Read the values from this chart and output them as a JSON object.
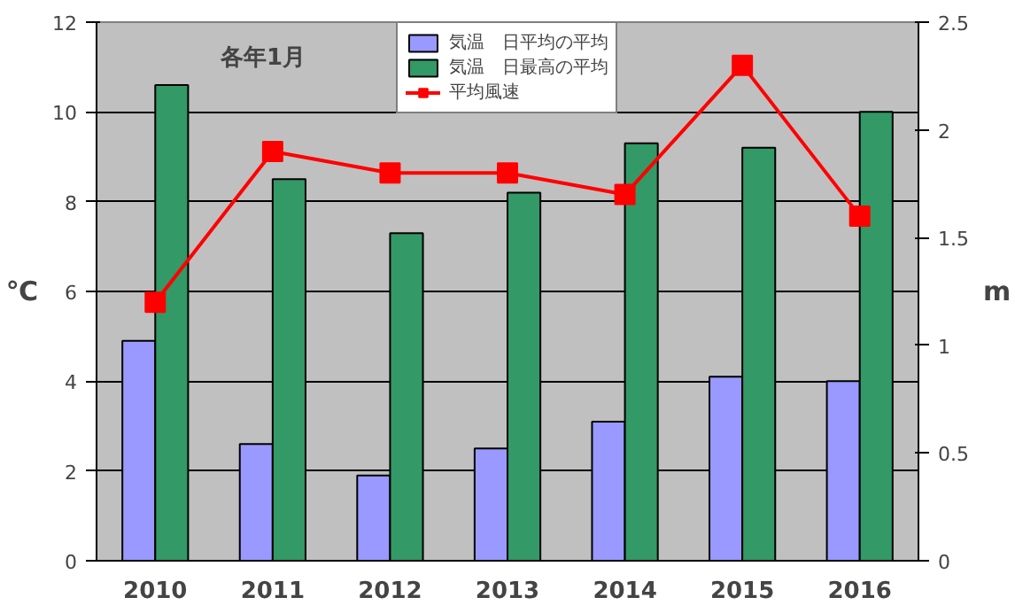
{
  "chart_data": {
    "type": "bar",
    "title": "各年1月",
    "categories": [
      "2010",
      "2011",
      "2012",
      "2013",
      "2014",
      "2015",
      "2016"
    ],
    "series": [
      {
        "name": "気温　日平均の平均",
        "color": "#9999ff",
        "values": [
          4.9,
          2.6,
          1.9,
          2.5,
          3.1,
          4.1,
          4.0
        ]
      },
      {
        "name": "気温　日最高の平均",
        "color": "#339966",
        "values": [
          10.6,
          8.5,
          7.3,
          8.2,
          9.3,
          9.2,
          10.0
        ]
      },
      {
        "name": "平均風速",
        "type": "line",
        "axis": "y2",
        "color": "#ff0000",
        "marker": "square",
        "values": [
          1.2,
          1.9,
          1.8,
          1.8,
          1.7,
          2.3,
          1.6
        ]
      }
    ],
    "ylabel": "℃",
    "y2label": "m",
    "ylim": [
      0,
      12
    ],
    "yticks": [
      0,
      2,
      4,
      6,
      8,
      10,
      12
    ],
    "y2lim": [
      0,
      2.5
    ],
    "y2ticks": [
      0,
      0.5,
      1,
      1.5,
      2,
      2.5
    ],
    "grid": "y",
    "legend": "top"
  }
}
